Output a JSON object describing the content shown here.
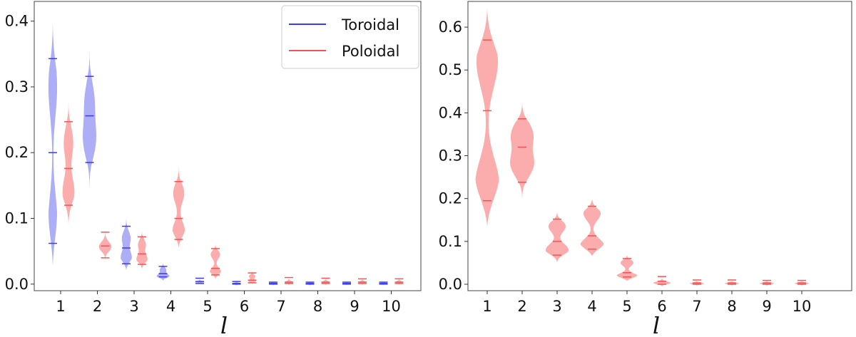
{
  "colors": {
    "toroidal": "#3b3bf5",
    "poloidal": "#f25555",
    "fill_toroidal": "#aaaaf7",
    "fill_poloidal": "#fba8a8"
  },
  "chart_data": [
    {
      "type": "violin",
      "xlabel": "l",
      "categories": [
        1,
        2,
        3,
        4,
        5,
        6,
        7,
        8,
        9,
        10
      ],
      "ylim": [
        -0.01,
        0.43
      ],
      "yticks": [
        "0.0",
        "0.1",
        "0.2",
        "0.3",
        "0.4"
      ],
      "legend": {
        "placement": "top-right",
        "entries": [
          "Toroidal",
          "Poloidal"
        ]
      },
      "series": [
        {
          "name": "Toroidal",
          "violins": [
            {
              "l": 1,
              "min": 0.028,
              "max": 0.405,
              "lines": [
                0.343,
                0.2,
                0.062
              ],
              "peaks": [
                [
                  0.09,
                  0.6
                ],
                [
                  0.3,
                  0.55
                ]
              ]
            },
            {
              "l": 2,
              "min": 0.14,
              "max": 0.365,
              "lines": [
                0.316,
                0.256,
                0.185
              ],
              "peaks": [
                [
                  0.22,
                  0.8
                ],
                [
                  0.28,
                  0.6
                ]
              ]
            },
            {
              "l": 3,
              "min": 0.02,
              "max": 0.108,
              "lines": [
                0.088,
                0.055,
                0.031
              ],
              "peaks": [
                [
                  0.04,
                  0.7
                ],
                [
                  0.07,
                  0.55
                ]
              ]
            },
            {
              "l": 4,
              "min": 0.005,
              "max": 0.035,
              "lines": [
                0.027,
                0.016,
                0.011
              ],
              "peaks": [
                [
                  0.012,
                  0.8
                ],
                [
                  0.022,
                  0.4
                ]
              ]
            },
            {
              "l": 5,
              "min": 0.0,
              "max": 0.012,
              "lines": [
                0.009,
                0.004,
                0.001
              ],
              "peaks": [
                [
                  0.003,
                  0.6
                ]
              ]
            },
            {
              "l": 6,
              "min": -0.003,
              "max": 0.007,
              "lines": [
                0.004,
                0.001,
                0.0
              ],
              "peaks": [
                [
                  0.001,
                  0.5
                ]
              ]
            },
            {
              "l": 7,
              "min": -0.003,
              "max": 0.006,
              "lines": [
                0.003,
                0.001,
                0.0
              ],
              "peaks": [
                [
                  0.001,
                  0.5
                ]
              ]
            },
            {
              "l": 8,
              "min": -0.003,
              "max": 0.006,
              "lines": [
                0.003,
                0.001,
                0.0
              ],
              "peaks": [
                [
                  0.001,
                  0.5
                ]
              ]
            },
            {
              "l": 9,
              "min": -0.003,
              "max": 0.005,
              "lines": [
                0.003,
                0.001,
                0.0
              ],
              "peaks": [
                [
                  0.001,
                  0.5
                ]
              ]
            },
            {
              "l": 10,
              "min": -0.003,
              "max": 0.005,
              "lines": [
                0.003,
                0.001,
                0.0
              ],
              "peaks": [
                [
                  0.001,
                  0.5
                ]
              ]
            }
          ]
        },
        {
          "name": "Poloidal",
          "violins": [
            {
              "l": 1,
              "min": 0.09,
              "max": 0.285,
              "lines": [
                0.247,
                0.176,
                0.12
              ],
              "peaks": [
                [
                  0.14,
                  0.75
                ],
                [
                  0.215,
                  0.6
                ]
              ]
            },
            {
              "l": 2,
              "min": 0.035,
              "max": 0.095,
              "lines": [
                0.079,
                0.058,
                0.04
              ],
              "peaks": [
                [
                  0.057,
                  0.8
                ]
              ]
            },
            {
              "l": 3,
              "min": 0.022,
              "max": 0.085,
              "lines": [
                0.072,
                0.046,
                0.03
              ],
              "peaks": [
                [
                  0.038,
                  0.7
                ],
                [
                  0.06,
                  0.5
                ]
              ]
            },
            {
              "l": 4,
              "min": 0.055,
              "max": 0.18,
              "lines": [
                0.156,
                0.1,
                0.068
              ],
              "peaks": [
                [
                  0.08,
                  0.8
                ],
                [
                  0.138,
                  0.7
                ]
              ]
            },
            {
              "l": 5,
              "min": 0.008,
              "max": 0.062,
              "lines": [
                0.054,
                0.024,
                0.014
              ],
              "peaks": [
                [
                  0.018,
                  0.75
                ],
                [
                  0.045,
                  0.6
                ]
              ]
            },
            {
              "l": 6,
              "min": 0.0,
              "max": 0.022,
              "lines": [
                0.017,
                0.006,
                0.002
              ],
              "peaks": [
                [
                  0.004,
                  0.5
                ],
                [
                  0.012,
                  0.4
                ]
              ]
            },
            {
              "l": 7,
              "min": -0.002,
              "max": 0.013,
              "lines": [
                0.01,
                0.003,
                0.001
              ],
              "peaks": [
                [
                  0.003,
                  0.5
                ]
              ]
            },
            {
              "l": 8,
              "min": -0.002,
              "max": 0.012,
              "lines": [
                0.009,
                0.003,
                0.001
              ],
              "peaks": [
                [
                  0.003,
                  0.5
                ]
              ]
            },
            {
              "l": 9,
              "min": -0.002,
              "max": 0.011,
              "lines": [
                0.008,
                0.003,
                0.001
              ],
              "peaks": [
                [
                  0.003,
                  0.5
                ]
              ]
            },
            {
              "l": 10,
              "min": -0.002,
              "max": 0.011,
              "lines": [
                0.008,
                0.003,
                0.001
              ],
              "peaks": [
                [
                  0.003,
                  0.5
                ]
              ]
            }
          ]
        }
      ]
    },
    {
      "type": "violin",
      "xlabel": "l",
      "categories": [
        1,
        2,
        3,
        4,
        5,
        6,
        7,
        8,
        9,
        10
      ],
      "ylim": [
        -0.015,
        0.66
      ],
      "yticks": [
        "0.0",
        "0.1",
        "0.2",
        "0.3",
        "0.4",
        "0.5",
        "0.6"
      ],
      "series": [
        {
          "name": "Poloidal",
          "violins": [
            {
              "l": 1,
              "min": 0.135,
              "max": 0.645,
              "lines": [
                0.57,
                0.405,
                0.195
              ],
              "peaks": [
                [
                  0.23,
                  0.85
                ],
                [
                  0.52,
                  0.75
                ]
              ]
            },
            {
              "l": 2,
              "min": 0.19,
              "max": 0.43,
              "lines": [
                0.386,
                0.32,
                0.238
              ],
              "peaks": [
                [
                  0.28,
                  0.8
                ],
                [
                  0.35,
                  0.75
                ]
              ]
            },
            {
              "l": 3,
              "min": 0.05,
              "max": 0.17,
              "lines": [
                0.152,
                0.1,
                0.068
              ],
              "peaks": [
                [
                  0.08,
                  0.8
                ],
                [
                  0.135,
                  0.6
                ]
              ]
            },
            {
              "l": 4,
              "min": 0.065,
              "max": 0.2,
              "lines": [
                0.182,
                0.113,
                0.082
              ],
              "peaks": [
                [
                  0.09,
                  0.85
                ],
                [
                  0.165,
                  0.6
                ]
              ]
            },
            {
              "l": 5,
              "min": 0.008,
              "max": 0.07,
              "lines": [
                0.06,
                0.027,
                0.017
              ],
              "peaks": [
                [
                  0.018,
                  0.8
                ],
                [
                  0.05,
                  0.45
                ]
              ]
            },
            {
              "l": 6,
              "min": -0.005,
              "max": 0.025,
              "lines": [
                0.018,
                0.007,
                0.0
              ],
              "peaks": [
                [
                  0.003,
                  0.6
                ]
              ]
            },
            {
              "l": 7,
              "min": -0.004,
              "max": 0.014,
              "lines": [
                0.01,
                0.003,
                0.0
              ],
              "peaks": [
                [
                  0.002,
                  0.5
                ]
              ]
            },
            {
              "l": 8,
              "min": -0.004,
              "max": 0.013,
              "lines": [
                0.01,
                0.003,
                0.0
              ],
              "peaks": [
                [
                  0.002,
                  0.5
                ]
              ]
            },
            {
              "l": 9,
              "min": -0.004,
              "max": 0.013,
              "lines": [
                0.009,
                0.003,
                0.0
              ],
              "peaks": [
                [
                  0.002,
                  0.5
                ]
              ]
            },
            {
              "l": 10,
              "min": -0.004,
              "max": 0.013,
              "lines": [
                0.009,
                0.003,
                0.0
              ],
              "peaks": [
                [
                  0.002,
                  0.5
                ]
              ]
            }
          ]
        }
      ]
    }
  ]
}
